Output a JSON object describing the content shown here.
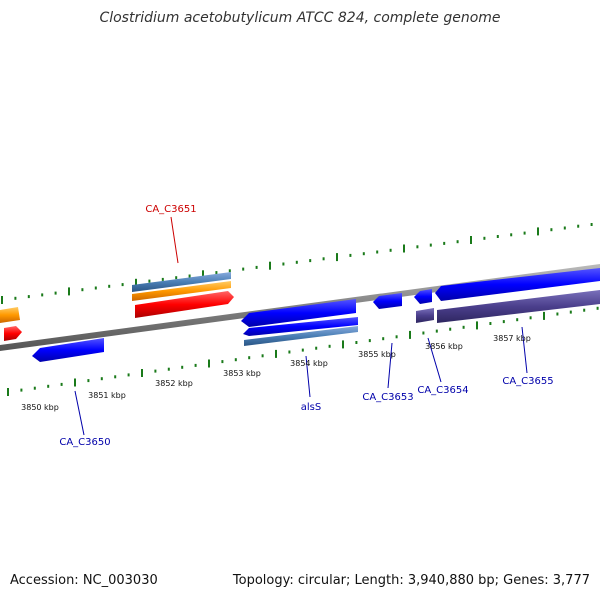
{
  "title": "Clostridium acetobutylicum ATCC 824, complete genome",
  "footer": {
    "accession": "Accession: NC_003030",
    "summary": "Topology: circular; Length: 3,940,880 bp; Genes: 3,777"
  },
  "ticks": [
    "3850 kbp",
    "3851 kbp",
    "3852 kbp",
    "3853 kbp",
    "3854 kbp",
    "3855 kbp",
    "3856 kbp",
    "3857 kbp"
  ],
  "genes": [
    {
      "label": "CA_C3651",
      "color": "#cc0000"
    },
    {
      "label": "CA_C3650",
      "color": "#0000aa"
    },
    {
      "label": "alsS",
      "color": "#0000aa"
    },
    {
      "label": "CA_C3653",
      "color": "#0000aa"
    },
    {
      "label": "CA_C3654",
      "color": "#0000aa"
    },
    {
      "label": "CA_C3655",
      "color": "#0000aa"
    }
  ],
  "colors": {
    "backbone": "#808080",
    "forward_cds": "#ff0000",
    "orange_feature": "#ff9900",
    "steel_feature": "#4a7fb5",
    "reverse_cds": "#0000ff",
    "purple_feature": "#4b3f8c",
    "tick_mark": "#1a7a1a"
  }
}
